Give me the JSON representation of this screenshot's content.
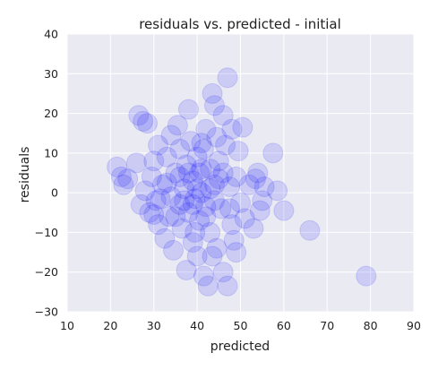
{
  "chart_data": {
    "type": "scatter",
    "title": "residuals vs. predicted - initial",
    "xlabel": "predicted",
    "ylabel": "residuals",
    "xlim": [
      10,
      90
    ],
    "ylim": [
      -30,
      40
    ],
    "xticks": [
      "10",
      "20",
      "30",
      "40",
      "50",
      "60",
      "70",
      "80",
      "90"
    ],
    "yticks": [
      "−30",
      "−20",
      "−10",
      "0",
      "10",
      "20",
      "30",
      "40"
    ],
    "grid": true,
    "colors": {
      "plot_bg": "#eaeaf2",
      "grid": "#ffffff",
      "marker": "#0000ff",
      "text": "#222222"
    },
    "marker_opacity": 0.13,
    "points": [
      [
        21.5,
        6.5
      ],
      [
        22.5,
        4.0
      ],
      [
        23.0,
        2.0
      ],
      [
        24.0,
        3.5
      ],
      [
        26.0,
        7.5
      ],
      [
        26.5,
        19.5
      ],
      [
        27.5,
        18.0
      ],
      [
        28.5,
        17.5
      ],
      [
        27.0,
        -3.0
      ],
      [
        28.0,
        0.5
      ],
      [
        29.0,
        -5.0
      ],
      [
        29.5,
        4.0
      ],
      [
        30.0,
        8.0
      ],
      [
        30.5,
        -2.0
      ],
      [
        31.0,
        12.0
      ],
      [
        31.0,
        -8.0
      ],
      [
        32.0,
        2.0
      ],
      [
        32.5,
        -11.5
      ],
      [
        33.0,
        9.0
      ],
      [
        33.5,
        -6.0
      ],
      [
        34.0,
        14.5
      ],
      [
        34.0,
        -1.0
      ],
      [
        34.5,
        -14.5
      ],
      [
        35.0,
        5.0
      ],
      [
        35.5,
        17.0
      ],
      [
        36.0,
        -3.0
      ],
      [
        36.0,
        11.0
      ],
      [
        36.5,
        -9.0
      ],
      [
        37.0,
        1.0
      ],
      [
        37.5,
        7.0
      ],
      [
        37.5,
        -19.5
      ],
      [
        38.0,
        21.0
      ],
      [
        38.0,
        -5.0
      ],
      [
        38.5,
        13.0
      ],
      [
        39.0,
        -12.5
      ],
      [
        39.0,
        3.0
      ],
      [
        39.5,
        -1.5
      ],
      [
        40.0,
        9.0
      ],
      [
        40.0,
        -16.0
      ],
      [
        40.5,
        5.0
      ],
      [
        40.5,
        -7.0
      ],
      [
        41.0,
        0.0
      ],
      [
        41.5,
        11.0
      ],
      [
        41.5,
        -21.0
      ],
      [
        42.0,
        -3.5
      ],
      [
        42.0,
        16.0
      ],
      [
        42.5,
        -23.5
      ],
      [
        43.0,
        6.0
      ],
      [
        43.0,
        -10.0
      ],
      [
        43.5,
        25.0
      ],
      [
        44.0,
        2.0
      ],
      [
        44.0,
        22.0
      ],
      [
        44.5,
        -14.0
      ],
      [
        45.0,
        8.0
      ],
      [
        45.5,
        -4.0
      ],
      [
        46.0,
        19.5
      ],
      [
        46.0,
        -20.0
      ],
      [
        46.5,
        12.0
      ],
      [
        47.0,
        29.0
      ],
      [
        47.0,
        -23.5
      ],
      [
        47.5,
        1.5
      ],
      [
        48.0,
        -8.0
      ],
      [
        48.0,
        16.0
      ],
      [
        48.5,
        -12.0
      ],
      [
        49.0,
        4.0
      ],
      [
        49.5,
        10.5
      ],
      [
        50.0,
        -2.5
      ],
      [
        50.5,
        16.5
      ],
      [
        51.0,
        -6.5
      ],
      [
        52.0,
        2.0
      ],
      [
        53.0,
        -9.0
      ],
      [
        53.5,
        3.5
      ],
      [
        54.0,
        5.0
      ],
      [
        54.5,
        -4.5
      ],
      [
        55.0,
        -2.0
      ],
      [
        55.5,
        1.5
      ],
      [
        57.5,
        10.0
      ],
      [
        58.5,
        0.5
      ],
      [
        60.0,
        -4.5
      ],
      [
        66.0,
        -9.5
      ],
      [
        79.0,
        -21.0
      ],
      [
        41.0,
        6.0
      ],
      [
        39.0,
        -3.0
      ],
      [
        43.0,
        1.0
      ],
      [
        37.0,
        -2.0
      ],
      [
        45.0,
        3.5
      ],
      [
        40.0,
        1.0
      ],
      [
        42.0,
        -6.0
      ],
      [
        38.0,
        5.0
      ],
      [
        44.0,
        -2.0
      ],
      [
        36.0,
        4.0
      ],
      [
        46.0,
        5.0
      ],
      [
        35.0,
        -6.0
      ],
      [
        47.5,
        -4.0
      ],
      [
        33.0,
        2.5
      ],
      [
        41.0,
        12.5
      ],
      [
        39.5,
        -10.0
      ],
      [
        43.5,
        -16.0
      ],
      [
        31.5,
        -1.5
      ],
      [
        30.0,
        -5.5
      ],
      [
        49.0,
        -15.0
      ],
      [
        44.5,
        14.0
      ]
    ]
  }
}
